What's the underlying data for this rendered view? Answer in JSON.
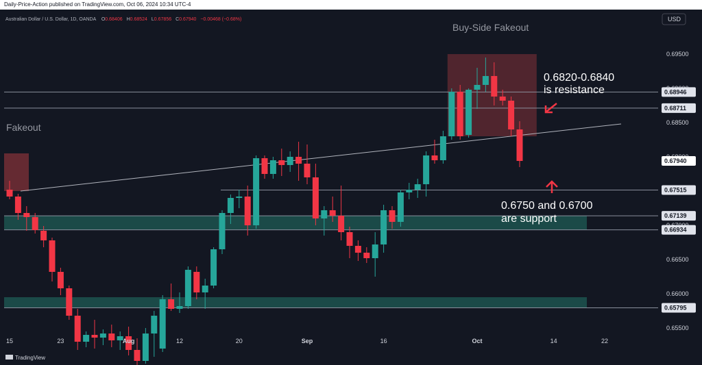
{
  "header": {
    "published": "Daily-Price-Action published on TradingView.com, Oct 06, 2024 10:34 UTC-4"
  },
  "ohlc": {
    "symbol": "Australian Dollar / U.S. Dollar, 1D, OANDA",
    "o_label": "O",
    "o_value": "0.68406",
    "h_label": "H",
    "h_value": "0.68524",
    "l_label": "L",
    "l_value": "0.67856",
    "c_label": "C",
    "c_value": "0.67940",
    "change": "−0.00468 (−0.68%)"
  },
  "currency": "USD",
  "footer": {
    "brand": "TradingView"
  },
  "colors": {
    "bg": "#131722",
    "up": "#26a69a",
    "down": "#f23645",
    "zone": "#1f5c56",
    "fake": "#7a2f37",
    "grid": "#8a8f9c"
  },
  "chart_data": {
    "type": "candlestick",
    "y_ticks": [
      "0.69500",
      "0.69000",
      "0.68500",
      "0.68000",
      "0.67500",
      "0.67000",
      "0.66500",
      "0.66000",
      "0.65500"
    ],
    "y_tick_values": [
      0.695,
      0.69,
      0.685,
      0.68,
      0.675,
      0.67,
      0.665,
      0.66,
      0.655
    ],
    "x_ticks": [
      "15",
      "23",
      "Aug",
      "12",
      "20",
      "Sep",
      "16",
      "Oct",
      "14",
      "22"
    ],
    "x_tick_index": [
      0,
      6,
      14,
      20,
      27,
      35,
      44,
      55,
      64,
      70
    ],
    "candles": [
      {
        "o": 0.6752,
        "h": 0.6765,
        "l": 0.6738,
        "c": 0.6742
      },
      {
        "o": 0.6742,
        "h": 0.6746,
        "l": 0.6708,
        "c": 0.6718
      },
      {
        "o": 0.6718,
        "h": 0.6728,
        "l": 0.6692,
        "c": 0.6712
      },
      {
        "o": 0.6712,
        "h": 0.6718,
        "l": 0.6688,
        "c": 0.6693
      },
      {
        "o": 0.6692,
        "h": 0.6699,
        "l": 0.6668,
        "c": 0.6678
      },
      {
        "o": 0.6678,
        "h": 0.6682,
        "l": 0.6618,
        "c": 0.6632
      },
      {
        "o": 0.6632,
        "h": 0.6638,
        "l": 0.6598,
        "c": 0.6608
      },
      {
        "o": 0.6608,
        "h": 0.6612,
        "l": 0.6562,
        "c": 0.6568
      },
      {
        "o": 0.6568,
        "h": 0.6578,
        "l": 0.6518,
        "c": 0.653
      },
      {
        "o": 0.653,
        "h": 0.6545,
        "l": 0.6522,
        "c": 0.654
      },
      {
        "o": 0.654,
        "h": 0.6562,
        "l": 0.652,
        "c": 0.6536
      },
      {
        "o": 0.6536,
        "h": 0.6548,
        "l": 0.6525,
        "c": 0.6542
      },
      {
        "o": 0.6542,
        "h": 0.6555,
        "l": 0.6522,
        "c": 0.6532
      },
      {
        "o": 0.6532,
        "h": 0.6545,
        "l": 0.6518,
        "c": 0.6538
      },
      {
        "o": 0.6538,
        "h": 0.6552,
        "l": 0.651,
        "c": 0.6518
      },
      {
        "o": 0.6518,
        "h": 0.6535,
        "l": 0.648,
        "c": 0.6502
      },
      {
        "o": 0.6502,
        "h": 0.655,
        "l": 0.6498,
        "c": 0.6542
      },
      {
        "o": 0.6542,
        "h": 0.6575,
        "l": 0.6508,
        "c": 0.6568
      },
      {
        "o": 0.652,
        "h": 0.6598,
        "l": 0.6515,
        "c": 0.6592
      },
      {
        "o": 0.6592,
        "h": 0.6615,
        "l": 0.6575,
        "c": 0.6578
      },
      {
        "o": 0.6578,
        "h": 0.6602,
        "l": 0.6572,
        "c": 0.6582
      },
      {
        "o": 0.6582,
        "h": 0.664,
        "l": 0.6578,
        "c": 0.6635
      },
      {
        "o": 0.6632,
        "h": 0.664,
        "l": 0.6592,
        "c": 0.6602
      },
      {
        "o": 0.6602,
        "h": 0.6622,
        "l": 0.6578,
        "c": 0.6612
      },
      {
        "o": 0.6612,
        "h": 0.6668,
        "l": 0.6608,
        "c": 0.6665
      },
      {
        "o": 0.6665,
        "h": 0.6722,
        "l": 0.6658,
        "c": 0.6718
      },
      {
        "o": 0.6718,
        "h": 0.6745,
        "l": 0.6702,
        "c": 0.674
      },
      {
        "o": 0.674,
        "h": 0.6752,
        "l": 0.6725,
        "c": 0.6742
      },
      {
        "o": 0.6742,
        "h": 0.6758,
        "l": 0.6685,
        "c": 0.67
      },
      {
        "o": 0.67,
        "h": 0.6802,
        "l": 0.6695,
        "c": 0.6798
      },
      {
        "o": 0.6798,
        "h": 0.6802,
        "l": 0.6768,
        "c": 0.6775
      },
      {
        "o": 0.6775,
        "h": 0.68,
        "l": 0.6768,
        "c": 0.6795
      },
      {
        "o": 0.6795,
        "h": 0.6812,
        "l": 0.6772,
        "c": 0.6788
      },
      {
        "o": 0.6788,
        "h": 0.6808,
        "l": 0.6778,
        "c": 0.68
      },
      {
        "o": 0.68,
        "h": 0.6822,
        "l": 0.6765,
        "c": 0.679
      },
      {
        "o": 0.679,
        "h": 0.6818,
        "l": 0.676,
        "c": 0.677
      },
      {
        "o": 0.677,
        "h": 0.679,
        "l": 0.67,
        "c": 0.671
      },
      {
        "o": 0.671,
        "h": 0.6728,
        "l": 0.6685,
        "c": 0.6722
      },
      {
        "o": 0.6722,
        "h": 0.6742,
        "l": 0.6705,
        "c": 0.6714
      },
      {
        "o": 0.6714,
        "h": 0.6758,
        "l": 0.6678,
        "c": 0.669
      },
      {
        "o": 0.669,
        "h": 0.6698,
        "l": 0.6652,
        "c": 0.667
      },
      {
        "o": 0.667,
        "h": 0.6678,
        "l": 0.6648,
        "c": 0.666
      },
      {
        "o": 0.666,
        "h": 0.6668,
        "l": 0.6645,
        "c": 0.6652
      },
      {
        "o": 0.6652,
        "h": 0.669,
        "l": 0.6625,
        "c": 0.6672
      },
      {
        "o": 0.6672,
        "h": 0.673,
        "l": 0.666,
        "c": 0.6722
      },
      {
        "o": 0.6722,
        "h": 0.6728,
        "l": 0.6695,
        "c": 0.6705
      },
      {
        "o": 0.6705,
        "h": 0.6752,
        "l": 0.6698,
        "c": 0.6748
      },
      {
        "o": 0.6748,
        "h": 0.6762,
        "l": 0.6738,
        "c": 0.6752
      },
      {
        "o": 0.6752,
        "h": 0.6768,
        "l": 0.674,
        "c": 0.676
      },
      {
        "o": 0.676,
        "h": 0.6808,
        "l": 0.6742,
        "c": 0.6802
      },
      {
        "o": 0.6802,
        "h": 0.6825,
        "l": 0.679,
        "c": 0.6795
      },
      {
        "o": 0.6795,
        "h": 0.6838,
        "l": 0.679,
        "c": 0.683
      },
      {
        "o": 0.683,
        "h": 0.69,
        "l": 0.6825,
        "c": 0.6895
      },
      {
        "o": 0.6895,
        "h": 0.6905,
        "l": 0.6825,
        "c": 0.683
      },
      {
        "o": 0.6832,
        "h": 0.69,
        "l": 0.6828,
        "c": 0.6898
      },
      {
        "o": 0.6898,
        "h": 0.693,
        "l": 0.687,
        "c": 0.6905
      },
      {
        "o": 0.6905,
        "h": 0.6945,
        "l": 0.6895,
        "c": 0.6918
      },
      {
        "o": 0.6918,
        "h": 0.6938,
        "l": 0.6875,
        "c": 0.6888
      },
      {
        "o": 0.6888,
        "h": 0.6898,
        "l": 0.6875,
        "c": 0.6882
      },
      {
        "o": 0.6882,
        "h": 0.6888,
        "l": 0.683,
        "c": 0.684
      },
      {
        "o": 0.684,
        "h": 0.6852,
        "l": 0.6785,
        "c": 0.6794
      }
    ],
    "levels": [
      {
        "value": 0.68946,
        "label": "0.68946"
      },
      {
        "value": 0.68711,
        "label": "0.68711"
      },
      {
        "value": 0.6794,
        "label": "0.67940"
      },
      {
        "value": 0.67515,
        "label": "0.67515"
      },
      {
        "value": 0.67139,
        "label": "0.67139"
      },
      {
        "value": 0.66934,
        "label": "0.66934"
      },
      {
        "value": 0.65795,
        "label": "0.65795"
      }
    ],
    "support_zones": [
      [
        0.66934,
        0.67139
      ],
      [
        0.65795,
        0.6595
      ]
    ],
    "annotations": {
      "fakeout": "Fakeout",
      "buy_side_fakeout": "Buy-Side Fakeout",
      "resistance_line1": "0.6820-0.6840",
      "resistance_line2": "is resistance",
      "support_line1": "0.6750 and 0.6700",
      "support_line2": "are support"
    }
  }
}
